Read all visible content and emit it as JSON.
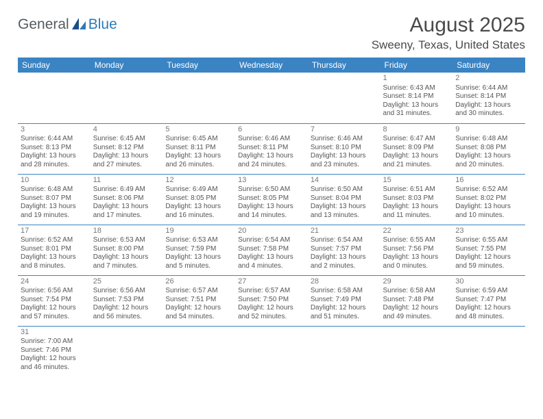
{
  "logo": {
    "general": "General",
    "blue": "Blue"
  },
  "title": {
    "month": "August 2025",
    "location": "Sweeny, Texas, United States"
  },
  "colors": {
    "header_bg": "#3a84c4",
    "header_fg": "#ffffff",
    "rule": "#3a84c4",
    "text": "#555555",
    "title_fg": "#4a4a4a",
    "logo_general": "#555a5e",
    "logo_blue": "#2a7ab9"
  },
  "weekdays": [
    "Sunday",
    "Monday",
    "Tuesday",
    "Wednesday",
    "Thursday",
    "Friday",
    "Saturday"
  ],
  "weeks": [
    [
      null,
      null,
      null,
      null,
      null,
      {
        "n": "1",
        "sr": "6:43 AM",
        "ss": "8:14 PM",
        "dl": "13 hours and 31 minutes."
      },
      {
        "n": "2",
        "sr": "6:44 AM",
        "ss": "8:14 PM",
        "dl": "13 hours and 30 minutes."
      }
    ],
    [
      {
        "n": "3",
        "sr": "6:44 AM",
        "ss": "8:13 PM",
        "dl": "13 hours and 28 minutes."
      },
      {
        "n": "4",
        "sr": "6:45 AM",
        "ss": "8:12 PM",
        "dl": "13 hours and 27 minutes."
      },
      {
        "n": "5",
        "sr": "6:45 AM",
        "ss": "8:11 PM",
        "dl": "13 hours and 26 minutes."
      },
      {
        "n": "6",
        "sr": "6:46 AM",
        "ss": "8:11 PM",
        "dl": "13 hours and 24 minutes."
      },
      {
        "n": "7",
        "sr": "6:46 AM",
        "ss": "8:10 PM",
        "dl": "13 hours and 23 minutes."
      },
      {
        "n": "8",
        "sr": "6:47 AM",
        "ss": "8:09 PM",
        "dl": "13 hours and 21 minutes."
      },
      {
        "n": "9",
        "sr": "6:48 AM",
        "ss": "8:08 PM",
        "dl": "13 hours and 20 minutes."
      }
    ],
    [
      {
        "n": "10",
        "sr": "6:48 AM",
        "ss": "8:07 PM",
        "dl": "13 hours and 19 minutes."
      },
      {
        "n": "11",
        "sr": "6:49 AM",
        "ss": "8:06 PM",
        "dl": "13 hours and 17 minutes."
      },
      {
        "n": "12",
        "sr": "6:49 AM",
        "ss": "8:05 PM",
        "dl": "13 hours and 16 minutes."
      },
      {
        "n": "13",
        "sr": "6:50 AM",
        "ss": "8:05 PM",
        "dl": "13 hours and 14 minutes."
      },
      {
        "n": "14",
        "sr": "6:50 AM",
        "ss": "8:04 PM",
        "dl": "13 hours and 13 minutes."
      },
      {
        "n": "15",
        "sr": "6:51 AM",
        "ss": "8:03 PM",
        "dl": "13 hours and 11 minutes."
      },
      {
        "n": "16",
        "sr": "6:52 AM",
        "ss": "8:02 PM",
        "dl": "13 hours and 10 minutes."
      }
    ],
    [
      {
        "n": "17",
        "sr": "6:52 AM",
        "ss": "8:01 PM",
        "dl": "13 hours and 8 minutes."
      },
      {
        "n": "18",
        "sr": "6:53 AM",
        "ss": "8:00 PM",
        "dl": "13 hours and 7 minutes."
      },
      {
        "n": "19",
        "sr": "6:53 AM",
        "ss": "7:59 PM",
        "dl": "13 hours and 5 minutes."
      },
      {
        "n": "20",
        "sr": "6:54 AM",
        "ss": "7:58 PM",
        "dl": "13 hours and 4 minutes."
      },
      {
        "n": "21",
        "sr": "6:54 AM",
        "ss": "7:57 PM",
        "dl": "13 hours and 2 minutes."
      },
      {
        "n": "22",
        "sr": "6:55 AM",
        "ss": "7:56 PM",
        "dl": "13 hours and 0 minutes."
      },
      {
        "n": "23",
        "sr": "6:55 AM",
        "ss": "7:55 PM",
        "dl": "12 hours and 59 minutes."
      }
    ],
    [
      {
        "n": "24",
        "sr": "6:56 AM",
        "ss": "7:54 PM",
        "dl": "12 hours and 57 minutes."
      },
      {
        "n": "25",
        "sr": "6:56 AM",
        "ss": "7:53 PM",
        "dl": "12 hours and 56 minutes."
      },
      {
        "n": "26",
        "sr": "6:57 AM",
        "ss": "7:51 PM",
        "dl": "12 hours and 54 minutes."
      },
      {
        "n": "27",
        "sr": "6:57 AM",
        "ss": "7:50 PM",
        "dl": "12 hours and 52 minutes."
      },
      {
        "n": "28",
        "sr": "6:58 AM",
        "ss": "7:49 PM",
        "dl": "12 hours and 51 minutes."
      },
      {
        "n": "29",
        "sr": "6:58 AM",
        "ss": "7:48 PM",
        "dl": "12 hours and 49 minutes."
      },
      {
        "n": "30",
        "sr": "6:59 AM",
        "ss": "7:47 PM",
        "dl": "12 hours and 48 minutes."
      }
    ],
    [
      {
        "n": "31",
        "sr": "7:00 AM",
        "ss": "7:46 PM",
        "dl": "12 hours and 46 minutes."
      },
      null,
      null,
      null,
      null,
      null,
      null
    ]
  ],
  "labels": {
    "sunrise": "Sunrise: ",
    "sunset": "Sunset: ",
    "daylight": "Daylight: "
  }
}
